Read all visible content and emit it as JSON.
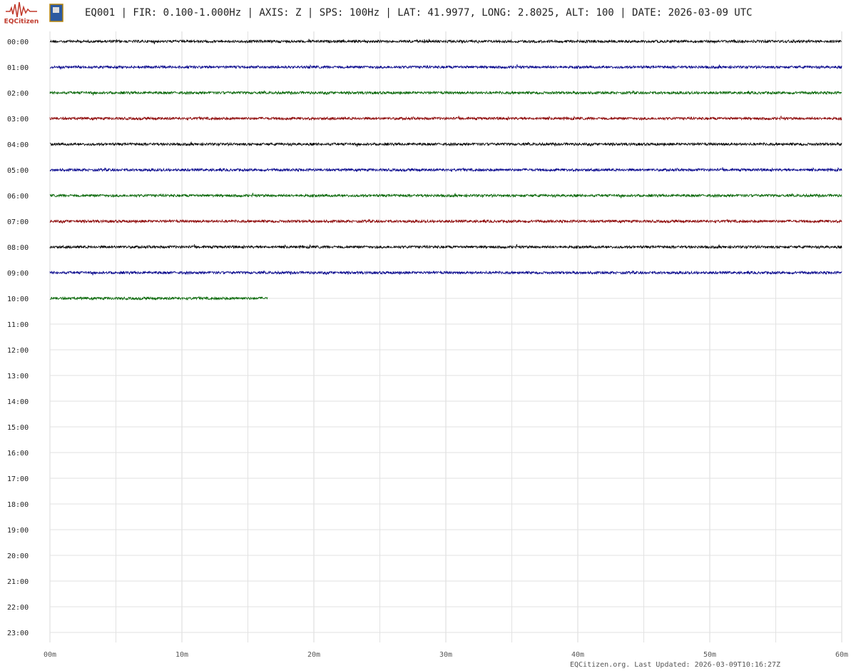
{
  "chart_data": {
    "type": "helicorder",
    "title": "EQ001 | FIR: 0.100-1.000Hz | AXIS: Z | SPS: 100Hz | LAT: 41.9977, LONG: 2.8025, ALT: 100 | DATE: 2026-03-09 UTC",
    "logo_text": "EQCitizen",
    "footer": "EQCitizen.org. Last Updated: 2026-03-09T10:16:27Z",
    "categories": [
      "00:00",
      "01:00",
      "02:00",
      "03:00",
      "04:00",
      "05:00",
      "06:00",
      "07:00",
      "08:00",
      "09:00",
      "10:00",
      "11:00",
      "12:00",
      "13:00",
      "14:00",
      "15:00",
      "16:00",
      "17:00",
      "18:00",
      "19:00",
      "20:00",
      "21:00",
      "22:00",
      "23:00"
    ],
    "values": [
      60,
      60,
      60,
      60,
      60,
      60,
      60,
      60,
      60,
      60,
      16.5,
      null,
      null,
      null,
      null,
      null,
      null,
      null,
      null,
      null,
      null,
      null,
      null,
      null
    ],
    "colors": [
      "#000000",
      "#00008b",
      "#006400",
      "#8b0000"
    ],
    "xlim": [
      0,
      60
    ],
    "xticks": [
      {
        "value": 0,
        "label": "00m"
      },
      {
        "value": 10,
        "label": "10m"
      },
      {
        "value": 20,
        "label": "20m"
      },
      {
        "value": 30,
        "label": "30m"
      },
      {
        "value": 40,
        "label": "40m"
      },
      {
        "value": 50,
        "label": "50m"
      },
      {
        "value": 60,
        "label": "60m"
      }
    ],
    "xminorticks": [
      5,
      15,
      25,
      35,
      45,
      55
    ],
    "grid": true
  }
}
